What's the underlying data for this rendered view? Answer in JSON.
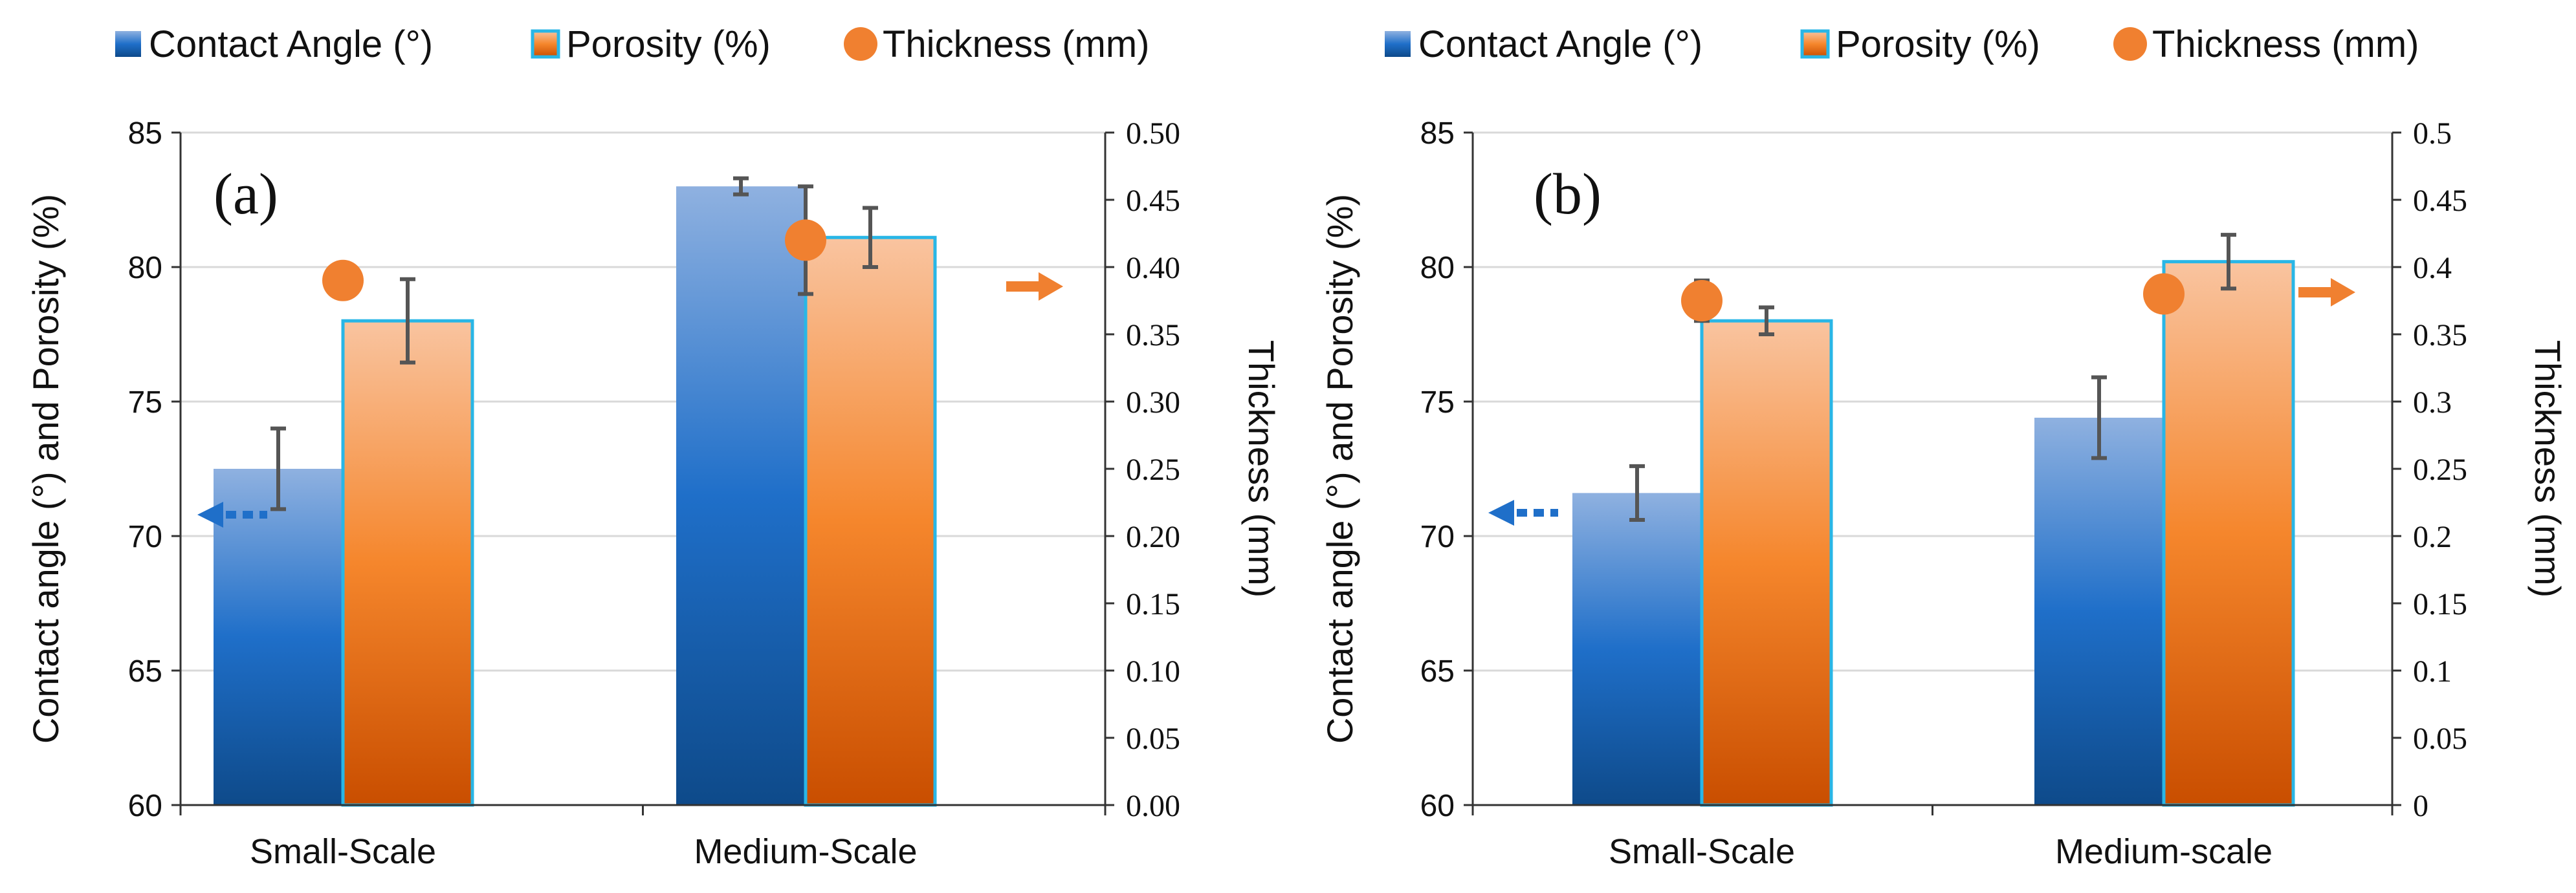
{
  "chart_data": [
    {
      "type": "bar",
      "panel_label": "(a)",
      "categories": [
        "Small-Scale",
        "Medium-Scale"
      ],
      "series": [
        {
          "name": "Contact Angle (°)",
          "axis": "left",
          "values": [
            72.5,
            83.0
          ],
          "errors": [
            1.5,
            0.3
          ]
        },
        {
          "name": "Porosity (%)",
          "axis": "left",
          "values": [
            78.0,
            81.1
          ],
          "errors": [
            1.55,
            1.1
          ]
        },
        {
          "name": "Thickness (mm)",
          "axis": "right",
          "marker": "circle",
          "values": [
            0.39,
            0.42
          ],
          "errors": [
            0.0,
            0.04
          ]
        }
      ],
      "legend": [
        "Contact Angle (°)",
        "Porosity (%)",
        "Thickness (mm)"
      ],
      "ylabel": "Contact angle (°) and Porosity (%)",
      "y2label": "Thickness (mm)",
      "ylim": [
        60,
        85
      ],
      "yticks": [
        "60",
        "65",
        "70",
        "75",
        "80",
        "85"
      ],
      "y2lim": [
        0,
        0.5
      ],
      "y2ticks": [
        "0.00",
        "0.05",
        "0.10",
        "0.15",
        "0.20",
        "0.25",
        "0.30",
        "0.35",
        "0.40",
        "0.45",
        "0.50"
      ],
      "grid": true
    },
    {
      "type": "bar",
      "panel_label": "(b)",
      "categories": [
        "Small-Scale",
        "Medium-scale"
      ],
      "series": [
        {
          "name": "Contact Angle (°)",
          "axis": "left",
          "values": [
            71.6,
            74.4
          ],
          "errors": [
            1.0,
            1.5
          ]
        },
        {
          "name": "Porosity (%)",
          "axis": "left",
          "values": [
            78.0,
            80.2
          ],
          "errors": [
            0.5,
            1.0
          ]
        },
        {
          "name": "Thickness (mm)",
          "axis": "right",
          "marker": "circle",
          "values": [
            0.375,
            0.38
          ],
          "errors": [
            0.015,
            0.0
          ]
        }
      ],
      "legend": [
        "Contact Angle (°)",
        "Porosity (%)",
        "Thickness (mm)"
      ],
      "ylabel": "Contact angle (°) and Porosity (%)",
      "y2label": "Thickness (mm)",
      "ylim": [
        60,
        85
      ],
      "yticks": [
        "60",
        "65",
        "70",
        "75",
        "80",
        "85"
      ],
      "y2lim": [
        0,
        0.5
      ],
      "y2ticks": [
        "0",
        "0.05",
        "0.1",
        "0.15",
        "0.2",
        "0.25",
        "0.3",
        "0.35",
        "0.4",
        "0.45",
        "0.5"
      ],
      "grid": true
    }
  ],
  "colors": {
    "contact_top": "#8fb1e0",
    "contact_mid": "#1f6fc9",
    "contact_bottom": "#0e4a8a",
    "porosity_top": "#f9c4a0",
    "porosity_mid": "#f5862c",
    "porosity_bottom": "#c94e00",
    "porosity_border": "#29b6e6",
    "thickness_marker": "#f08030",
    "error_bar": "#555555",
    "grid": "#d9d9d9",
    "arrow_left": "#1f6fc9",
    "arrow_right": "#f08030"
  },
  "icons": {
    "left_arrow": "left-dotted-arrow-icon",
    "right_arrow": "right-arrow-icon"
  }
}
